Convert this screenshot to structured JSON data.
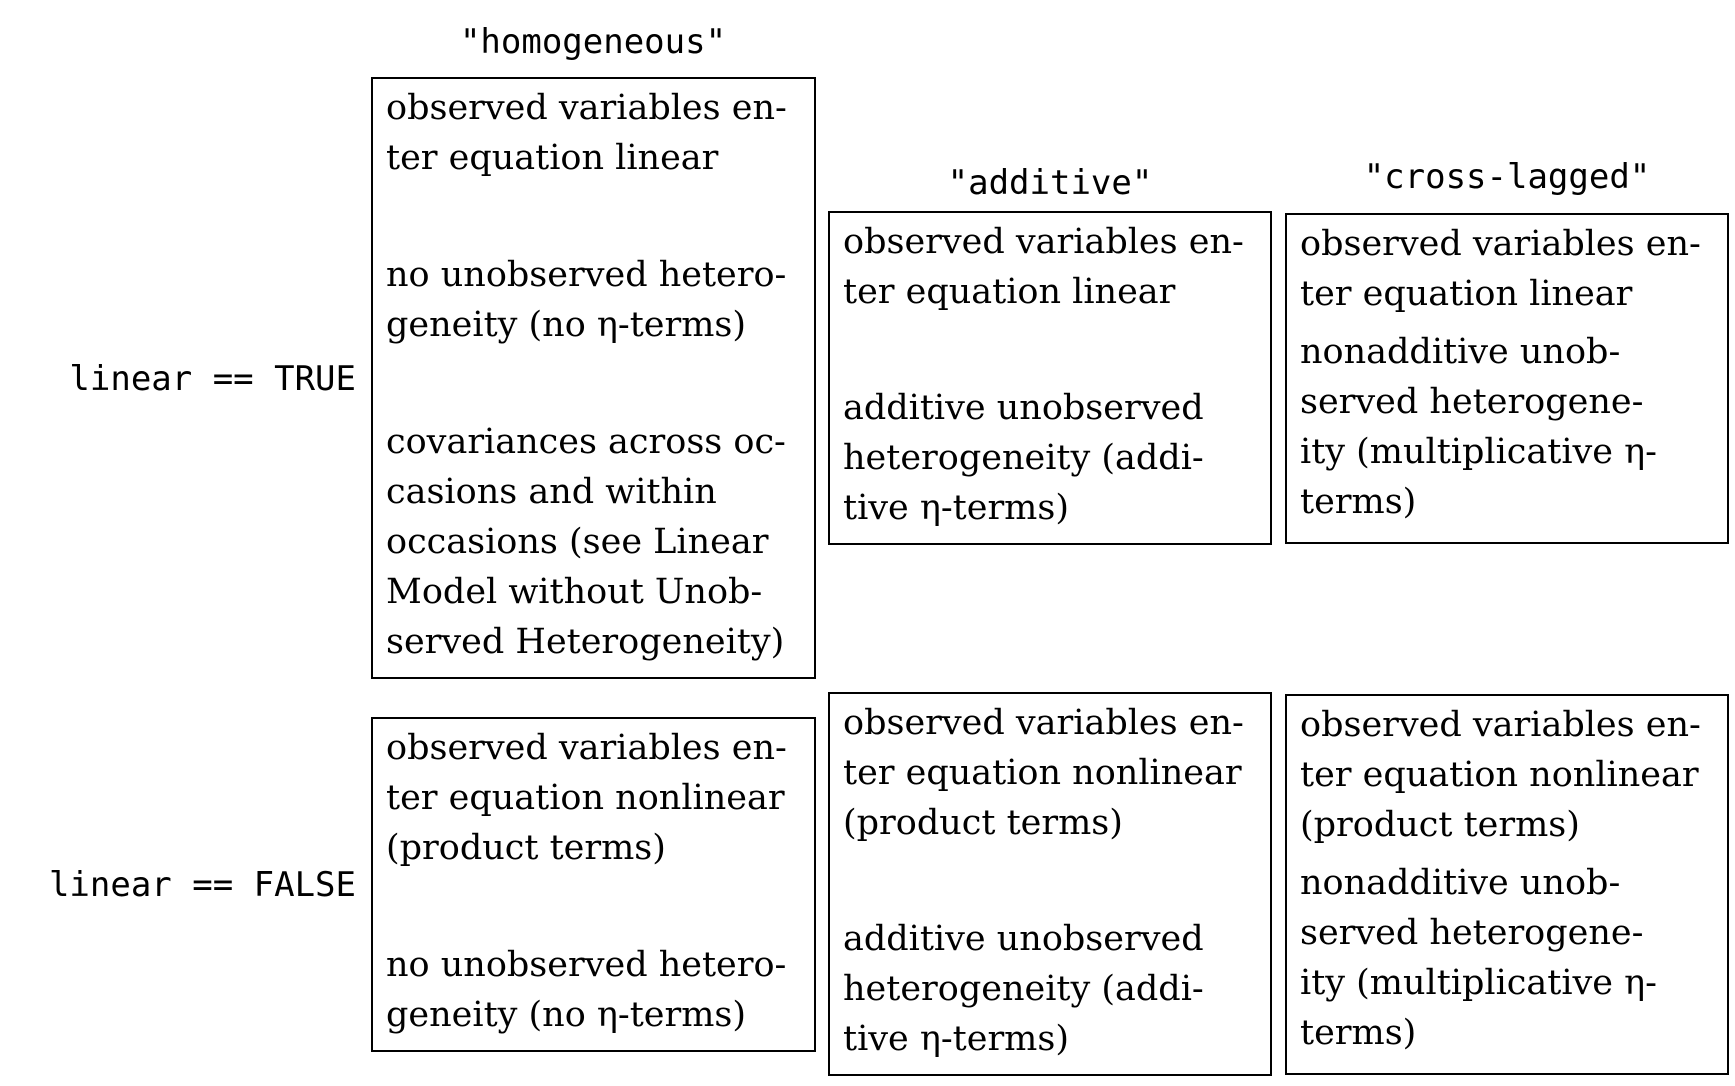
{
  "columns": {
    "homogeneous": "\"homogeneous\"",
    "additive": "\"additive\"",
    "cross_lagged": "\"cross-lagged\""
  },
  "rows": {
    "linear_true": "linear == TRUE",
    "linear_false": "linear == FALSE"
  },
  "cells": {
    "true_homogeneous": [
      "observed variables en-\nter equation linear",
      "no unobserved hetero-\ngeneity (no η-terms)",
      "covariances across oc-\ncasions and within\noccasions (see Linear\nModel without Unob-\nserved Heterogeneity)"
    ],
    "true_additive": [
      "observed variables en-\nter equation linear",
      "additive unobserved\nheterogeneity (addi-\ntive η-terms)"
    ],
    "true_cross_lagged": [
      "observed variables en-\nter equation linear",
      "nonadditive unob-\nserved heterogene-\nity (multiplicative η-\nterms)"
    ],
    "false_homogeneous": [
      "observed variables en-\nter equation nonlinear\n(product terms)",
      "no unobserved hetero-\ngeneity (no η-terms)"
    ],
    "false_additive": [
      "observed variables en-\nter equation nonlinear\n(product terms)",
      "additive unobserved\nheterogeneity (addi-\ntive η-terms)"
    ],
    "false_cross_lagged": [
      "observed variables en-\nter equation nonlinear\n(product terms)",
      "nonadditive unob-\nserved heterogene-\nity (multiplicative η-\nterms)"
    ]
  }
}
